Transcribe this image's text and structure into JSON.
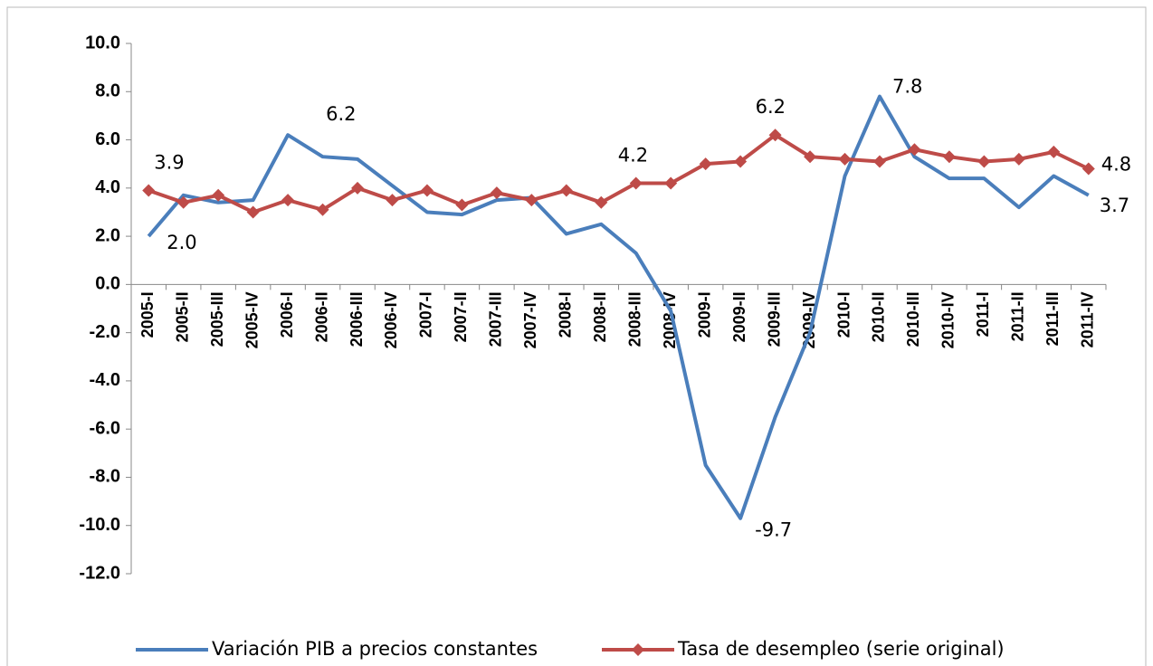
{
  "chart_data": {
    "type": "line",
    "categories": [
      "2005-I",
      "2005-II",
      "2005-III",
      "2005-IV",
      "2006-I",
      "2006-II",
      "2006-III",
      "2006-IV",
      "2007-I",
      "2007-II",
      "2007-III",
      "2007-IV",
      "2008-I",
      "2008-II",
      "2008-III",
      "2008-IV",
      "2009-I",
      "2009-II",
      "2009-III",
      "2009-IV",
      "2010-I",
      "2010-II",
      "2010-III",
      "2010-IV",
      "2011-I",
      "2011-II",
      "2011-III",
      "2011-IV"
    ],
    "series": [
      {
        "name": "Variación PIB a precios constantes",
        "color": "#4a7ebb",
        "marker": "none",
        "values": [
          2.0,
          3.7,
          3.4,
          3.5,
          6.2,
          5.3,
          5.2,
          4.1,
          3.0,
          2.9,
          3.5,
          3.6,
          2.1,
          2.5,
          1.3,
          -1.1,
          -7.5,
          -9.7,
          -5.5,
          -2.0,
          4.5,
          7.8,
          5.3,
          4.4,
          4.4,
          3.2,
          4.5,
          3.7
        ],
        "value_labels": [
          "2.0",
          null,
          null,
          null,
          "6.2",
          null,
          null,
          null,
          null,
          null,
          null,
          null,
          null,
          null,
          null,
          null,
          null,
          "-9.7",
          null,
          null,
          null,
          "7.8",
          null,
          null,
          null,
          null,
          null,
          "3.7"
        ]
      },
      {
        "name": "Tasa de desempleo (serie original)",
        "color": "#be4b48",
        "marker": "diamond",
        "values": [
          3.9,
          3.4,
          3.7,
          3.0,
          3.5,
          3.1,
          4.0,
          3.5,
          3.9,
          3.3,
          3.8,
          3.5,
          3.9,
          3.4,
          4.2,
          4.2,
          5.0,
          5.1,
          6.2,
          5.3,
          5.2,
          5.1,
          5.6,
          5.3,
          5.1,
          5.2,
          5.5,
          4.8
        ],
        "value_labels": [
          "3.9",
          null,
          null,
          null,
          null,
          null,
          null,
          null,
          null,
          null,
          null,
          null,
          null,
          null,
          "4.2",
          null,
          null,
          null,
          "6.2",
          null,
          null,
          null,
          null,
          null,
          null,
          null,
          null,
          "4.8"
        ]
      }
    ],
    "ylim": [
      -12,
      10
    ],
    "yticks": [
      {
        "value": -12,
        "label": "-12.0"
      },
      {
        "value": -10,
        "label": "-10.0"
      },
      {
        "value": -8,
        "label": "-8.0"
      },
      {
        "value": -6,
        "label": "-6.0"
      },
      {
        "value": -4,
        "label": "-4.0"
      },
      {
        "value": -2,
        "label": "-2.0"
      },
      {
        "value": 0,
        "label": "0.0"
      },
      {
        "value": 2,
        "label": "2.0"
      },
      {
        "value": 4,
        "label": "4.0"
      },
      {
        "value": 6,
        "label": "6.0"
      },
      {
        "value": 8,
        "label": "8.0"
      },
      {
        "value": 10,
        "label": "10.0"
      }
    ],
    "grid": false,
    "legend": "bottom"
  }
}
